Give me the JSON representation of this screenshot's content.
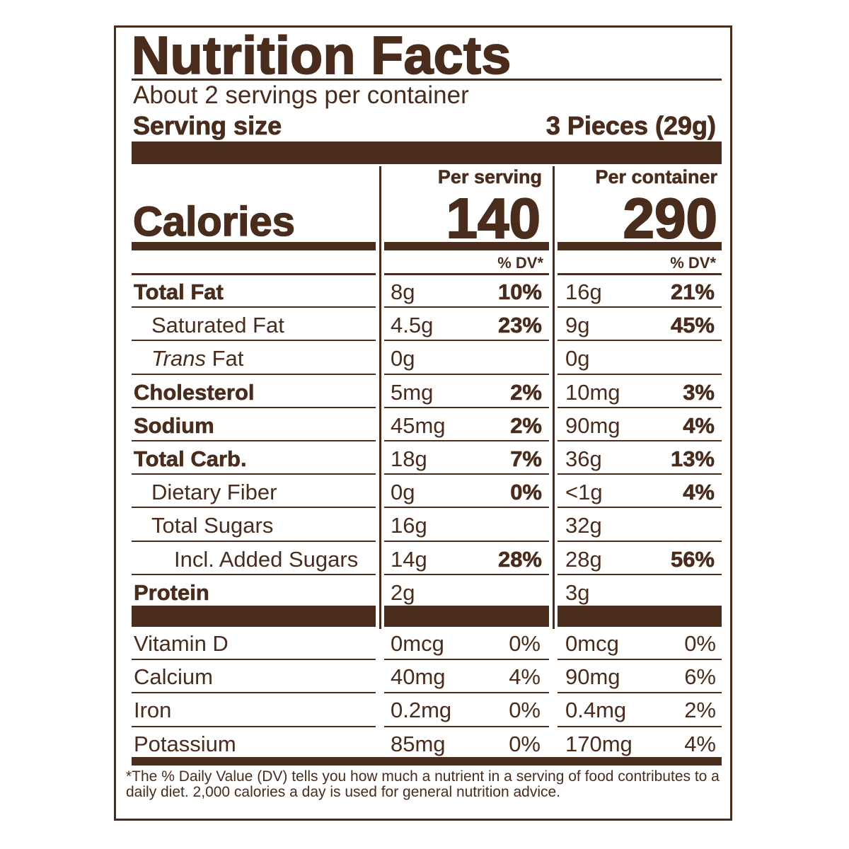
{
  "title": "Nutrition Facts",
  "servings_per_container": "About 2 servings per container",
  "serving_size_label": "Serving size",
  "serving_size_value": "3 Pieces (29g)",
  "calories_label": "Calories",
  "per_serving_label": "Per serving",
  "per_container_label": "Per container",
  "calories_per_serving": "140",
  "calories_per_container": "290",
  "dv_label": "% DV*",
  "nutrients": [
    {
      "name": "Total Fat",
      "bold": true,
      "indent": 0,
      "serving_amount": "8g",
      "serving_dv": "10%",
      "container_amount": "16g",
      "container_dv": "21%"
    },
    {
      "name": "Saturated Fat",
      "bold": false,
      "indent": 1,
      "serving_amount": "4.5g",
      "serving_dv": "23%",
      "container_amount": "9g",
      "container_dv": "45%"
    },
    {
      "name_italic": "Trans",
      "name": " Fat",
      "bold": false,
      "indent": 1,
      "serving_amount": "0g",
      "serving_dv": "",
      "container_amount": "0g",
      "container_dv": ""
    },
    {
      "name": "Cholesterol",
      "bold": true,
      "indent": 0,
      "serving_amount": "5mg",
      "serving_dv": "2%",
      "container_amount": "10mg",
      "container_dv": "3%"
    },
    {
      "name": "Sodium",
      "bold": true,
      "indent": 0,
      "serving_amount": "45mg",
      "serving_dv": "2%",
      "container_amount": "90mg",
      "container_dv": "4%"
    },
    {
      "name": "Total Carb.",
      "bold": true,
      "indent": 0,
      "serving_amount": "18g",
      "serving_dv": "7%",
      "container_amount": "36g",
      "container_dv": "13%"
    },
    {
      "name": "Dietary Fiber",
      "bold": false,
      "indent": 1,
      "serving_amount": "0g",
      "serving_dv": "0%",
      "container_amount": "<1g",
      "container_dv": "4%"
    },
    {
      "name": "Total Sugars",
      "bold": false,
      "indent": 1,
      "serving_amount": "16g",
      "serving_dv": "",
      "container_amount": "32g",
      "container_dv": ""
    },
    {
      "name": "Incl. Added Sugars",
      "bold": false,
      "indent": 2,
      "serving_amount": "14g",
      "serving_dv": "28%",
      "container_amount": "28g",
      "container_dv": "56%"
    },
    {
      "name": "Protein",
      "bold": true,
      "indent": 0,
      "serving_amount": "2g",
      "serving_dv": "",
      "container_amount": "3g",
      "container_dv": ""
    }
  ],
  "vitamins": [
    {
      "name": "Vitamin D",
      "serving_amount": "0mcg",
      "serving_dv": "0%",
      "container_amount": "0mcg",
      "container_dv": "0%"
    },
    {
      "name": "Calcium",
      "serving_amount": "40mg",
      "serving_dv": "4%",
      "container_amount": "90mg",
      "container_dv": "6%"
    },
    {
      "name": "Iron",
      "serving_amount": "0.2mg",
      "serving_dv": "0%",
      "container_amount": "0.4mg",
      "container_dv": "2%"
    },
    {
      "name": "Potassium",
      "serving_amount": "85mg",
      "serving_dv": "0%",
      "container_amount": "170mg",
      "container_dv": "4%"
    }
  ],
  "footnote": "*The % Daily Value (DV) tells you how much a nutrient in a serving of food contributes to a daily diet. 2,000 calories a day is used for general nutrition advice.",
  "colors": {
    "ink": "#4a2c1c",
    "background": "#ffffff"
  }
}
